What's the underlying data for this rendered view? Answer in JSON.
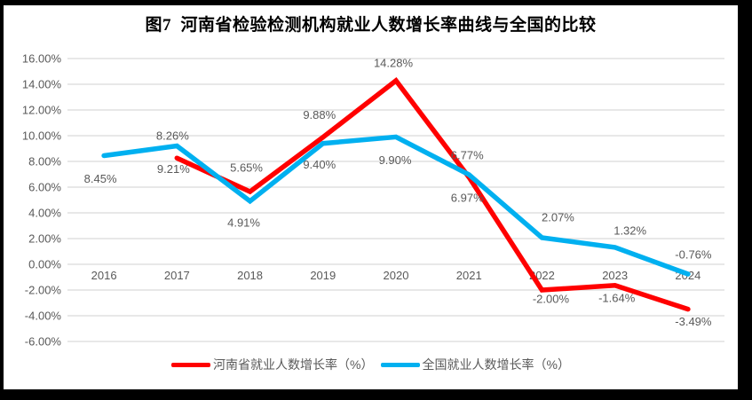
{
  "chart_data": {
    "type": "line",
    "title": "图7  河南省检验检测机构就业人数增长率曲线与全国的比较",
    "categories": [
      "2016",
      "2017",
      "2018",
      "2019",
      "2020",
      "2021",
      "2022",
      "2023",
      "2024"
    ],
    "series": [
      {
        "name": "河南省就业人数增长率（%）",
        "color": "#FF0000",
        "values": [
          null,
          8.26,
          5.65,
          9.88,
          14.28,
          6.77,
          -2.0,
          -1.64,
          -3.49
        ],
        "point_labels": [
          {
            "index": 1,
            "text": "8.26%",
            "dx": -5,
            "dy": -25
          },
          {
            "index": 2,
            "text": "5.65%",
            "dx": -4,
            "dy": -27
          },
          {
            "index": 3,
            "text": "9.88%",
            "dx": -4,
            "dy": -25
          },
          {
            "index": 4,
            "text": "14.28%",
            "dx": -3,
            "dy": -20
          },
          {
            "index": 5,
            "text": "6.77%",
            "dx": -2,
            "dy": -25
          },
          {
            "index": 6,
            "text": "-2.00%",
            "dx": 10,
            "dy": 10
          },
          {
            "index": 7,
            "text": "-1.64%",
            "dx": 2,
            "dy": 14
          },
          {
            "index": 8,
            "text": "-3.49%",
            "dx": 6,
            "dy": 14
          }
        ]
      },
      {
        "name": "全国就业人数增长率（%）",
        "color": "#00B0F0",
        "values": [
          8.45,
          9.21,
          4.91,
          9.4,
          9.9,
          6.97,
          2.07,
          1.32,
          -0.76
        ],
        "point_labels": [
          {
            "index": 0,
            "text": "8.45%",
            "dx": -4,
            "dy": 26
          },
          {
            "index": 1,
            "text": "9.21%",
            "dx": -4,
            "dy": 26
          },
          {
            "index": 2,
            "text": "4.91%",
            "dx": -7,
            "dy": 24
          },
          {
            "index": 3,
            "text": "9.40%",
            "dx": -4,
            "dy": 24
          },
          {
            "index": 4,
            "text": "9.90%",
            "dx": -1,
            "dy": 26
          },
          {
            "index": 5,
            "text": "6.97%",
            "dx": -2,
            "dy": 26
          },
          {
            "index": 6,
            "text": "2.07%",
            "dx": 18,
            "dy": -23
          },
          {
            "index": 7,
            "text": "1.32%",
            "dx": 17,
            "dy": -19
          },
          {
            "index": 8,
            "text": "-0.76%",
            "dx": 6,
            "dy": -22
          }
        ]
      }
    ],
    "y_axis": {
      "min": -6,
      "max": 16,
      "step": 2,
      "tick_labels": [
        "16.00%",
        "14.00%",
        "12.00%",
        "10.00%",
        "8.00%",
        "6.00%",
        "4.00%",
        "2.00%",
        "0.00%",
        "-2.00%",
        "-4.00%",
        "-6.00%"
      ]
    },
    "grid": true,
    "legend_position": "bottom",
    "colors": {
      "grid": "#D9D9D9",
      "axis_text": "#595959",
      "label_text": "#595959",
      "title_text": "#000000",
      "background": "#FFFFFF",
      "border": "#000000"
    }
  }
}
